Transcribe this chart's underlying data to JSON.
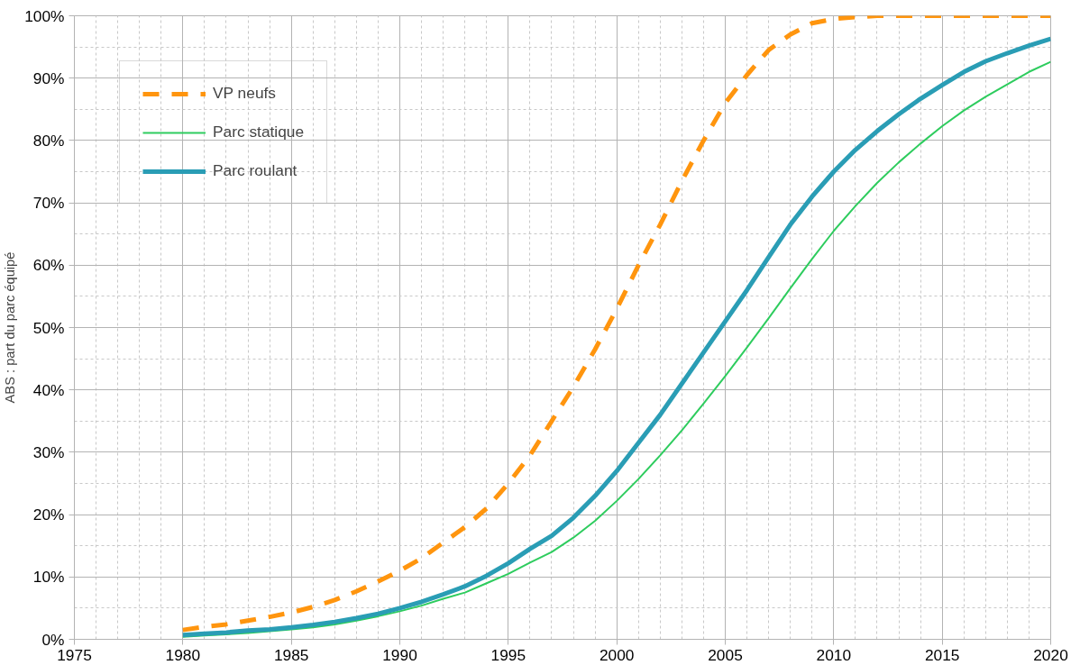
{
  "chart_data": {
    "type": "line",
    "ylabel": "ABS : part du parc équipé",
    "x": [
      1980,
      1981,
      1982,
      1983,
      1984,
      1985,
      1986,
      1987,
      1988,
      1989,
      1990,
      1991,
      1992,
      1993,
      1994,
      1995,
      1996,
      1997,
      1998,
      1999,
      2000,
      2001,
      2002,
      2003,
      2004,
      2005,
      2006,
      2007,
      2008,
      2009,
      2010,
      2011,
      2012,
      2013,
      2014,
      2015,
      2016,
      2017,
      2018,
      2019,
      2020
    ],
    "series": [
      {
        "name": "VP neufs",
        "color": "#ff950e",
        "line_style": "dashed",
        "values": [
          1.5,
          2,
          2.4,
          3,
          3.6,
          4.3,
          5.2,
          6.3,
          7.7,
          9.3,
          11,
          13,
          15.5,
          18,
          21,
          25,
          29.5,
          35,
          40.5,
          46.5,
          53,
          60,
          66.5,
          73.5,
          80,
          86,
          90.5,
          94.5,
          97,
          98.8,
          99.5,
          99.8,
          100,
          100,
          100,
          100,
          100,
          100,
          100,
          100,
          100
        ]
      },
      {
        "name": "Parc statique",
        "color": "#2ecc5e",
        "line_style": "solid",
        "values": [
          0.4,
          0.6,
          0.8,
          1.0,
          1.3,
          1.6,
          1.9,
          2.4,
          3,
          3.7,
          4.5,
          5.4,
          6.5,
          7.5,
          9,
          10.5,
          12.3,
          14,
          16.3,
          19,
          22.2,
          25.7,
          29.5,
          33.5,
          37.8,
          42.2,
          46.8,
          51.5,
          56.3,
          61,
          65.5,
          69.5,
          73.2,
          76.5,
          79.5,
          82.3,
          84.8,
          87,
          89,
          91,
          92.6
        ]
      },
      {
        "name": "Parc roulant",
        "color": "#2a9db5",
        "line_style": "solid",
        "values": [
          0.7,
          0.9,
          1.1,
          1.4,
          1.6,
          1.9,
          2.3,
          2.8,
          3.4,
          4.1,
          5,
          6,
          7.2,
          8.5,
          10.2,
          12.2,
          14.5,
          16.6,
          19.5,
          23,
          27,
          31.5,
          36,
          41,
          46,
          51,
          56,
          61.3,
          66.5,
          71,
          75,
          78.5,
          81.5,
          84.2,
          86.7,
          88.9,
          91,
          92.7,
          94,
          95.2,
          96.3
        ]
      }
    ],
    "xlim": [
      1975,
      2020
    ],
    "xticks": [
      1975,
      1980,
      1985,
      1990,
      1995,
      2000,
      2005,
      2010,
      2015,
      2020
    ],
    "ylim": [
      0,
      100
    ],
    "yticks": [
      {
        "value": 0,
        "label": "0%"
      },
      {
        "value": 10,
        "label": "10%"
      },
      {
        "value": 20,
        "label": "20%"
      },
      {
        "value": 30,
        "label": "30%"
      },
      {
        "value": 40,
        "label": "40%"
      },
      {
        "value": 50,
        "label": "50%"
      },
      {
        "value": 60,
        "label": "60%"
      },
      {
        "value": 70,
        "label": "70%"
      },
      {
        "value": 80,
        "label": "80%"
      },
      {
        "value": 90,
        "label": "90%"
      },
      {
        "value": 100,
        "label": "100%"
      }
    ],
    "grid": true,
    "legend": "top left",
    "marker": "none"
  }
}
